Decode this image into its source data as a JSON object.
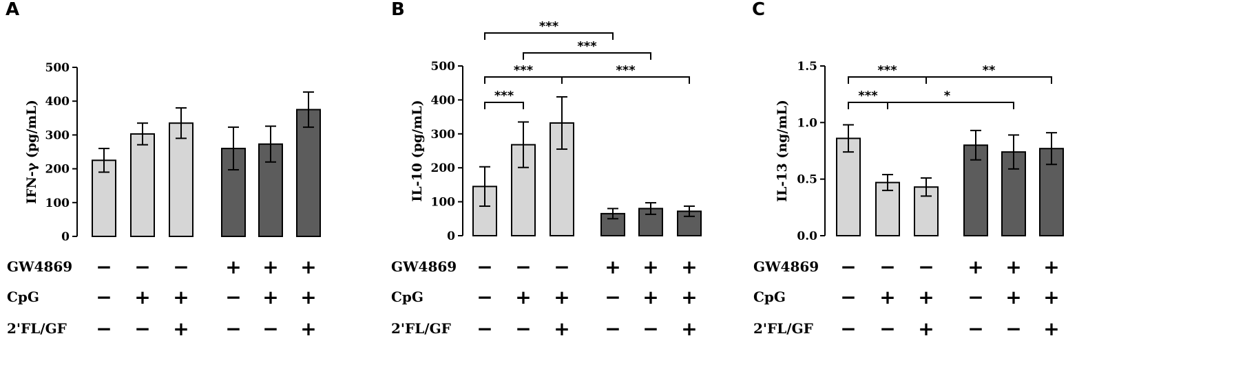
{
  "colors": {
    "light_bar": "#d6d6d6",
    "dark_bar": "#5c5c5c",
    "stroke": "#000000"
  },
  "row_labels": [
    "GW4869",
    "CpG",
    "2'FL/GF"
  ],
  "treatments": [
    [
      "−",
      "−",
      "−",
      "+",
      "+",
      "+"
    ],
    [
      "−",
      "+",
      "+",
      "−",
      "+",
      "+"
    ],
    [
      "−",
      "−",
      "+",
      "−",
      "−",
      "+"
    ]
  ],
  "chart_data": [
    {
      "panel": "A",
      "type": "bar",
      "ylabel": "IFN-γ (pg/mL)",
      "ylim": [
        0,
        500
      ],
      "yticks": [
        "0",
        "100",
        "200",
        "300",
        "400",
        "500"
      ],
      "values": [
        225,
        303,
        335,
        260,
        273,
        375
      ],
      "errors": [
        35,
        32,
        45,
        63,
        53,
        52
      ],
      "bar_color_keys": [
        "light",
        "light",
        "light",
        "dark",
        "dark",
        "dark"
      ],
      "significance": []
    },
    {
      "panel": "B",
      "type": "bar",
      "ylabel": "IL-10 (pg/mL)",
      "ylim": [
        0,
        500
      ],
      "yticks": [
        "0",
        "100",
        "200",
        "300",
        "400",
        "500"
      ],
      "values": [
        145,
        268,
        332,
        65,
        80,
        72
      ],
      "errors": [
        58,
        67,
        77,
        15,
        17,
        15
      ],
      "bar_color_keys": [
        "light",
        "light",
        "light",
        "dark",
        "dark",
        "dark"
      ],
      "significance": [
        {
          "from": 0,
          "to": 3,
          "label": "***"
        },
        {
          "from": 1,
          "to": 4,
          "label": "***"
        },
        {
          "from": 0,
          "to": 2,
          "label": "***"
        },
        {
          "from": 2,
          "to": 5,
          "label": "***"
        },
        {
          "from": 0,
          "to": 1,
          "label": "***"
        }
      ]
    },
    {
      "panel": "C",
      "type": "bar",
      "ylabel": "IL-13 (ng/mL)",
      "ylim": [
        0,
        1.5
      ],
      "yticks": [
        "0.0",
        "0.5",
        "1.0",
        "1.5"
      ],
      "values": [
        0.86,
        0.47,
        0.43,
        0.8,
        0.74,
        0.77
      ],
      "errors": [
        0.12,
        0.07,
        0.08,
        0.13,
        0.15,
        0.14
      ],
      "bar_color_keys": [
        "light",
        "light",
        "light",
        "dark",
        "dark",
        "dark"
      ],
      "significance": [
        {
          "from": 0,
          "to": 2,
          "label": "***"
        },
        {
          "from": 2,
          "to": 5,
          "label": "**"
        },
        {
          "from": 0,
          "to": 1,
          "label": "***"
        },
        {
          "from": 1,
          "to": 4,
          "label": "*"
        }
      ]
    }
  ]
}
